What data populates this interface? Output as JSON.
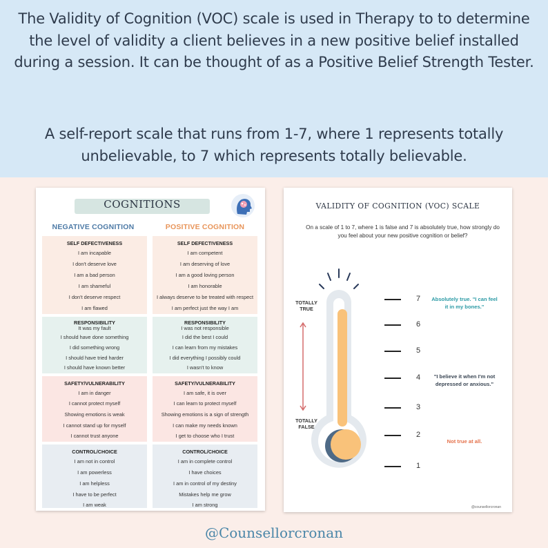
{
  "intro": {
    "paragraph1": "The Validity of Cognition (VOC) scale is used in Therapy to  to determine the level of validity a client believes in a new positive belief installed during a session. It can be thought of as a Positive Belief Strength Tester.",
    "paragraph2": "A self-report scale that runs from 1-7, where 1 represents totally unbelievable, to 7 which represents totally believable."
  },
  "cognitions": {
    "title": "COGNITIONS",
    "negative_heading": "NEGATIVE COGNITION",
    "positive_heading": "POSITIVE COGNITION",
    "sections": [
      {
        "title": "SELF DEFECTIVENESS",
        "negative": [
          "I am incapable",
          "I don't deserve love",
          "I am a bad person",
          "I am shameful",
          "I don't deserve respect",
          "I am flawed"
        ],
        "positive": [
          "I am competent",
          "I am deserving of love",
          "I am a good loving person",
          "I am honorable",
          "I always deserve to be treated with respect",
          "I am perfect just the way I am"
        ]
      },
      {
        "title": "RESPONSIBILITY",
        "negative": [
          "It was my fault",
          "I should have done something",
          "I did something wrong",
          "I should have tried harder",
          "I should have known better"
        ],
        "positive": [
          "I was not responsible",
          "I did the best I could",
          "I can learn from my mistakes",
          "I did everything I  possibly could",
          "I wasn't to know"
        ]
      },
      {
        "title": "SAFETY/VULNERABILITY",
        "negative": [
          "I am in danger",
          "I cannot protect myself",
          "Showing emotions is weak",
          "I cannot stand up for myself",
          "I cannot trust anyone"
        ],
        "positive": [
          "I am safe, it is over",
          "I can learn to protect myself",
          "Showing emotions is a sign of strength",
          "I can make my needs known",
          "I get to choose who I trust"
        ]
      },
      {
        "title": "CONTROL/CHOICE",
        "negative": [
          "I am not in control",
          "I am powerless",
          "I am helpless",
          "I have to be perfect",
          "I am weak"
        ],
        "positive": [
          "I am in complete control",
          "I have choices",
          "I am in control of my destiny",
          "Mistakes help me grow",
          "I am strong"
        ]
      }
    ]
  },
  "voc": {
    "title": "VALIDITY OF COGNITION  (VOC) SCALE",
    "question": "On a scale of 1 to 7, where 1 is false and 7 is absolutely true, how strongly do you feel about your new positive cognition or belief?",
    "totally_true": "TOTALLY TRUE",
    "totally_false": "TOTALLY FALSE",
    "scale": [
      "7",
      "6",
      "5",
      "4",
      "3",
      "2",
      "1"
    ],
    "note_7": "Absolutely true. \"I can feel it in my bones.\"",
    "note_4": "\"I believe it when I'm not depressed or anxious.\"",
    "note_1": "Not true at all.",
    "credit": "@counsellorcronan",
    "colors": {
      "teal": "#2b9aa5",
      "orange": "#e4704a",
      "fill": "#f9c27a",
      "shadow": "#4f6a86",
      "tube": "#e4e9ee",
      "arrow": "#d46a6a"
    }
  },
  "handle": "@Counsellorcronan"
}
